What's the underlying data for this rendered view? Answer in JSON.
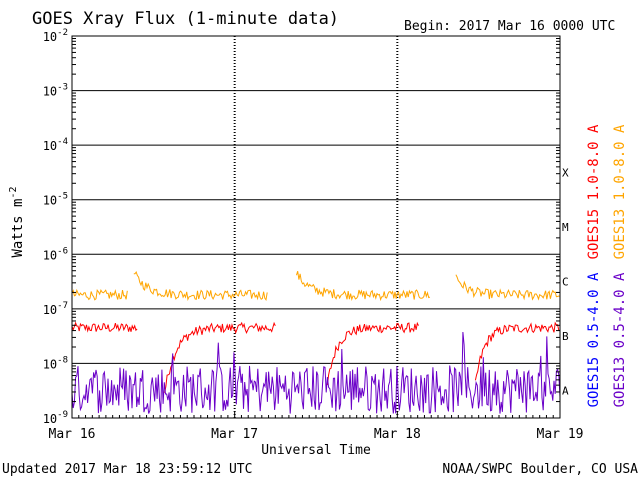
{
  "chart_data": {
    "type": "line",
    "title": "GOES Xray Flux (1-minute data)",
    "begin_label": "Begin:  2017 Mar 16 0000 UTC",
    "xlabel": "Universal Time",
    "ylabel": "Watts m",
    "ylabel_sup": "-2",
    "y_scale": "log",
    "ylim_exponents": [
      -9,
      -2
    ],
    "y_ticks": [
      {
        "base": "10",
        "exp": "-2"
      },
      {
        "base": "10",
        "exp": "-3"
      },
      {
        "base": "10",
        "exp": "-4"
      },
      {
        "base": "10",
        "exp": "-5"
      },
      {
        "base": "10",
        "exp": "-6"
      },
      {
        "base": "10",
        "exp": "-7"
      },
      {
        "base": "10",
        "exp": "-8"
      },
      {
        "base": "10",
        "exp": "-9"
      }
    ],
    "x_ticks": [
      "Mar 16",
      "Mar 17",
      "Mar 18",
      "Mar 19"
    ],
    "xlim_days": [
      0,
      3
    ],
    "flare_classes": [
      {
        "label": "X",
        "exp": -4
      },
      {
        "label": "M",
        "exp": -5
      },
      {
        "label": "C",
        "exp": -6
      },
      {
        "label": "B",
        "exp": -7
      },
      {
        "label": "A",
        "exp": -8
      }
    ],
    "grid": true,
    "legend_placement": "right",
    "series": [
      {
        "name": "GOES15 1.0-8.0 A",
        "color": "#ff0000",
        "segments": [
          {
            "x": [
              0.0,
              0.4
            ],
            "y": [
              4.5e-08,
              4.5e-08
            ]
          },
          {
            "x": [
              0.57,
              1.25
            ],
            "y": [
              3e-09,
              4.5e-08
            ]
          },
          {
            "x": [
              1.57,
              2.13
            ],
            "y": [
              4e-09,
              4.5e-08
            ]
          },
          {
            "x": [
              2.48,
              3.0
            ],
            "y": [
              4e-09,
              4.5e-08
            ]
          }
        ]
      },
      {
        "name": "GOES13 1.0-8.0 A",
        "color": "#ffa500",
        "segments": [
          {
            "x": [
              0.0,
              0.34
            ],
            "y": [
              1.8e-07,
              1.8e-07
            ]
          },
          {
            "x": [
              0.38,
              1.2
            ],
            "y": [
              4.5e-07,
              1.8e-07
            ]
          },
          {
            "x": [
              1.38,
              2.2
            ],
            "y": [
              4.5e-07,
              1.8e-07
            ]
          },
          {
            "x": [
              2.36,
              3.0
            ],
            "y": [
              4e-07,
              1.8e-07
            ]
          }
        ]
      },
      {
        "name": "GOES15 0.5-4.0 A",
        "color": "#0000ff",
        "segments": []
      },
      {
        "name": "GOES13 0.5-4.0 A",
        "color": "#6a00c8",
        "segments": [
          {
            "x": [
              0.0,
              3.0
            ],
            "y": [
              1.2e-09,
              1.2e-09
            ]
          }
        ]
      }
    ]
  },
  "footer": {
    "updated": "Updated 2017 Mar 18 23:59:12 UTC",
    "credit": "NOAA/SWPC Boulder, CO USA"
  }
}
